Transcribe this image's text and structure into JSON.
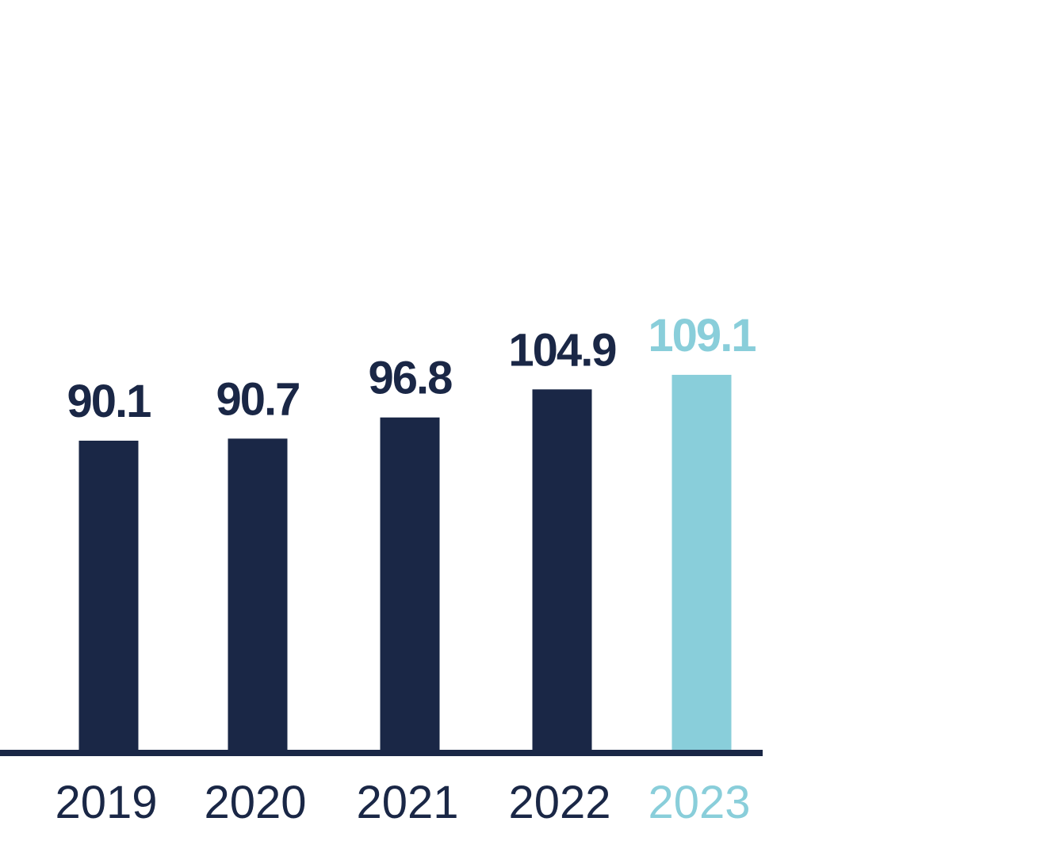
{
  "chart_data": {
    "type": "bar",
    "title": "",
    "xlabel": "",
    "ylabel": "",
    "categories": [
      "2019",
      "2020",
      "2021",
      "2022",
      "2023"
    ],
    "values": [
      90.1,
      90.7,
      96.8,
      104.9,
      109.1
    ],
    "value_labels": [
      "90.1",
      "90.7",
      "96.8",
      "104.9",
      "109.1"
    ],
    "highlight_index": 4,
    "ylim": [
      0,
      170
    ],
    "grid": false,
    "legend": "none",
    "colors": {
      "bar": "#1a2746",
      "highlight": "#89ceda",
      "axis": "#1a2746"
    }
  }
}
